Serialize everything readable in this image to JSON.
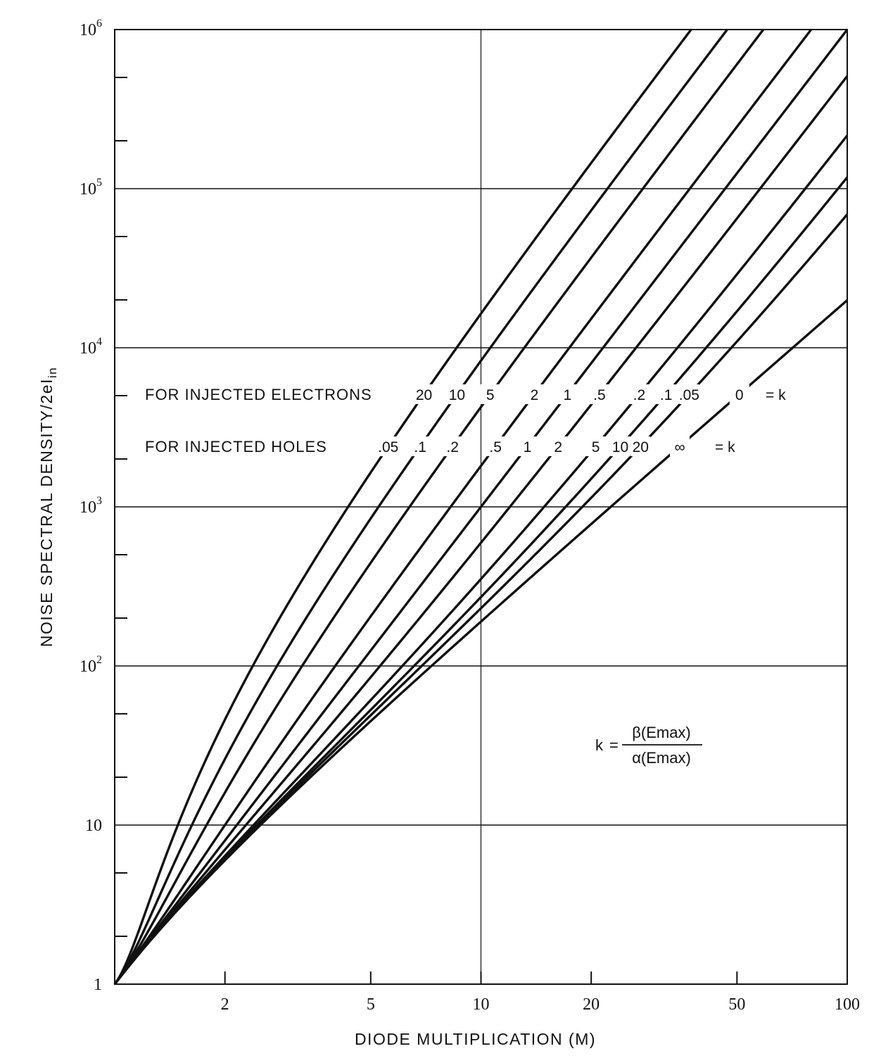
{
  "chart_data": {
    "type": "line",
    "xscale": "log",
    "yscale": "log",
    "xlim": [
      1,
      100
    ],
    "ylim": [
      1,
      1000000
    ],
    "grid": true,
    "xlabel": "DIODE MULTIPLICATION  (M)",
    "ylabel": "NOISE SPECTRAL DENSITY/2eI",
    "ylabel_sub": "in",
    "x_ticks": [
      {
        "value": 2,
        "label": "2"
      },
      {
        "value": 5,
        "label": "5"
      },
      {
        "value": 10,
        "label": "10"
      },
      {
        "value": 20,
        "label": "20"
      },
      {
        "value": 50,
        "label": "50"
      },
      {
        "value": 100,
        "label": "100"
      }
    ],
    "y_ticks": [
      {
        "value": 1,
        "base": "1",
        "exp": ""
      },
      {
        "value": 10,
        "base": "10",
        "exp": ""
      },
      {
        "value": 100,
        "base": "10",
        "exp": "2"
      },
      {
        "value": 1000,
        "base": "10",
        "exp": "3"
      },
      {
        "value": 10000,
        "base": "10",
        "exp": "4"
      },
      {
        "value": 100000,
        "base": "10",
        "exp": "5"
      },
      {
        "value": 1000000,
        "base": "10",
        "exp": "6"
      }
    ],
    "legend": {
      "electrons_label": "FOR INJECTED ELECTRONS",
      "holes_label": "FOR INJECTED HOLES",
      "suffix": "= k"
    },
    "series": [
      {
        "k_electrons": "20",
        "k_holes": ".05",
        "k": 20
      },
      {
        "k_electrons": "10",
        "k_holes": ".1",
        "k": 10
      },
      {
        "k_electrons": "5",
        "k_holes": ".2",
        "k": 5
      },
      {
        "k_electrons": "2",
        "k_holes": ".5",
        "k": 2
      },
      {
        "k_electrons": "1",
        "k_holes": "1",
        "k": 1
      },
      {
        "k_electrons": ".5",
        "k_holes": "2",
        "k": 0.5
      },
      {
        "k_electrons": ".2",
        "k_holes": "5",
        "k": 0.2
      },
      {
        "k_electrons": ".1",
        "k_holes": "10",
        "k": 0.1
      },
      {
        "k_electrons": ".05",
        "k_holes": "20",
        "k": 0.05
      },
      {
        "k_electrons": "0",
        "k_holes": "∞",
        "k": 0
      }
    ],
    "annotation": {
      "lhs": "k",
      "numerator": "β(Emax)",
      "denominator": "α(Emax)"
    }
  }
}
